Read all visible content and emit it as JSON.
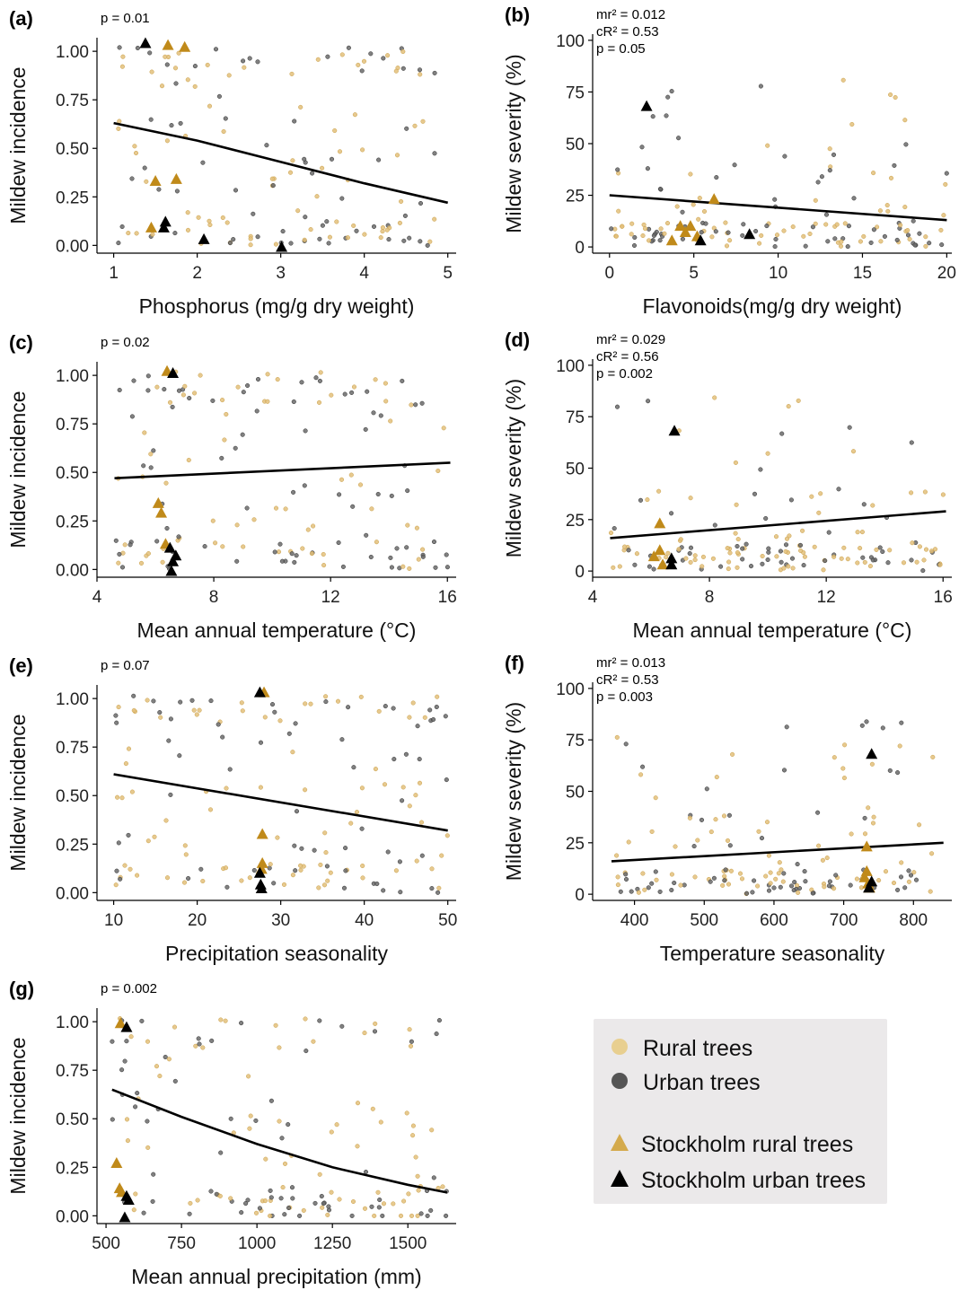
{
  "colors": {
    "rural": "#d4aa4c",
    "urban": "#555555",
    "stockholm_rural": "#c08a1a",
    "stockholm_urban": "#000000",
    "fit": "#000000",
    "legend_bg": "#ebe9ea"
  },
  "legend": {
    "items": [
      {
        "label": "Rural trees",
        "symbol": "circle",
        "color": "#e8cf90"
      },
      {
        "label": "Urban trees",
        "symbol": "circle",
        "color": "#555555"
      },
      {
        "label": "Stockholm rural trees",
        "symbol": "triangle",
        "color": "#d4aa4c"
      },
      {
        "label": "Stockholm urban trees",
        "symbol": "triangle",
        "color": "#000000"
      }
    ]
  },
  "chart_data": [
    {
      "panel": "(a)",
      "type": "scatter",
      "xlabel": "Phosphorus (mg/g dry weight)",
      "ylabel": "Mildew incidence",
      "stats": [
        "p = 0.01"
      ],
      "xlim": [
        0.8,
        5.1
      ],
      "ylim": [
        -0.04,
        1.07
      ],
      "xticks": [
        1,
        2,
        3,
        4,
        5
      ],
      "xtick_labels": [
        "1",
        "2",
        "3",
        "4",
        "5"
      ],
      "yticks": [
        0,
        0.25,
        0.5,
        0.75,
        1
      ],
      "ytick_labels": [
        "0.00",
        "0.25",
        "0.50",
        "0.75",
        "1.00"
      ],
      "fit": [
        [
          1.0,
          0.63
        ],
        [
          2.0,
          0.54
        ],
        [
          3.0,
          0.43
        ],
        [
          4.0,
          0.32
        ],
        [
          5.0,
          0.22
        ]
      ],
      "stockholm_rural": [
        [
          1.5,
          0.33
        ],
        [
          1.75,
          0.34
        ],
        [
          1.45,
          0.09
        ],
        [
          1.85,
          1.02
        ],
        [
          1.65,
          1.03
        ]
      ],
      "stockholm_urban": [
        [
          1.38,
          1.04
        ],
        [
          1.62,
          0.12
        ],
        [
          1.6,
          0.09
        ],
        [
          2.08,
          0.03
        ],
        [
          3.01,
          -0.01
        ]
      ]
    },
    {
      "panel": "(b)",
      "type": "scatter",
      "xlabel": "Flavonoids(mg/g dry weight)",
      "ylabel": "Mildew severity (%)",
      "stats": [
        "mr² = 0.012",
        "cR² = 0.53",
        "p = 0.05"
      ],
      "xlim": [
        -1,
        20.3
      ],
      "ylim": [
        -3,
        103
      ],
      "xticks": [
        0,
        5,
        10,
        15,
        20
      ],
      "xtick_labels": [
        "0",
        "5",
        "10",
        "15",
        "20"
      ],
      "yticks": [
        0,
        25,
        50,
        75,
        100
      ],
      "ytick_labels": [
        "0",
        "25",
        "50",
        "75",
        "100"
      ],
      "fit": [
        [
          0,
          25
        ],
        [
          20,
          13
        ]
      ],
      "stockholm_rural": [
        [
          4.2,
          10
        ],
        [
          4.8,
          10
        ],
        [
          4.5,
          7
        ],
        [
          3.7,
          3
        ],
        [
          5.2,
          5
        ],
        [
          6.2,
          23
        ]
      ],
      "stockholm_urban": [
        [
          2.2,
          68
        ],
        [
          5.4,
          3
        ],
        [
          8.3,
          6
        ]
      ]
    },
    {
      "panel": "(c)",
      "type": "scatter",
      "xlabel": "Mean annual temperature (°C)",
      "ylabel": "Mildew incidence",
      "stats": [
        "p = 0.02"
      ],
      "xlim": [
        4,
        16.3
      ],
      "ylim": [
        -0.04,
        1.07
      ],
      "xticks": [
        4,
        8,
        12,
        16
      ],
      "xtick_labels": [
        "4",
        "8",
        "12",
        "16"
      ],
      "yticks": [
        0,
        0.25,
        0.5,
        0.75,
        1
      ],
      "ytick_labels": [
        "0.00",
        "0.25",
        "0.50",
        "0.75",
        "1.00"
      ],
      "fit": [
        [
          4.6,
          0.47
        ],
        [
          16.1,
          0.55
        ]
      ],
      "stockholm_rural": [
        [
          6.1,
          0.34
        ],
        [
          6.2,
          0.29
        ],
        [
          6.35,
          0.13
        ],
        [
          6.4,
          1.02
        ]
      ],
      "stockholm_urban": [
        [
          6.6,
          1.01
        ],
        [
          6.5,
          0.11
        ],
        [
          6.7,
          0.07
        ],
        [
          6.6,
          0.04
        ],
        [
          6.55,
          -0.01
        ]
      ]
    },
    {
      "panel": "(d)",
      "type": "scatter",
      "xlabel": "Mean annual temperature (°C)",
      "ylabel": "Mildew severity (%)",
      "stats": [
        "mr² = 0.029",
        "cR² = 0.56",
        "p = 0.002"
      ],
      "xlim": [
        4,
        16.3
      ],
      "ylim": [
        -3,
        103
      ],
      "xticks": [
        4,
        8,
        12,
        16
      ],
      "xtick_labels": [
        "4",
        "8",
        "12",
        "16"
      ],
      "yticks": [
        0,
        25,
        50,
        75,
        100
      ],
      "ytick_labels": [
        "0",
        "25",
        "50",
        "75",
        "100"
      ],
      "fit": [
        [
          4.6,
          16
        ],
        [
          16.1,
          29
        ]
      ],
      "stockholm_rural": [
        [
          6.3,
          23
        ],
        [
          6.3,
          10
        ],
        [
          6.1,
          7
        ],
        [
          6.4,
          3
        ]
      ],
      "stockholm_urban": [
        [
          6.8,
          68
        ],
        [
          6.7,
          6
        ],
        [
          6.7,
          3
        ]
      ]
    },
    {
      "panel": "(e)",
      "type": "scatter",
      "xlabel": "Precipitation seasonality",
      "ylabel": "Mildew incidence",
      "stats": [
        "p = 0.07"
      ],
      "xlim": [
        8,
        51
      ],
      "ylim": [
        -0.04,
        1.07
      ],
      "xticks": [
        10,
        20,
        30,
        40,
        50
      ],
      "xtick_labels": [
        "10",
        "20",
        "30",
        "40",
        "50"
      ],
      "yticks": [
        0,
        0.25,
        0.5,
        0.75,
        1
      ],
      "ytick_labels": [
        "0.00",
        "0.25",
        "0.50",
        "0.75",
        "1.00"
      ],
      "fit": [
        [
          10,
          0.61
        ],
        [
          50,
          0.32
        ]
      ],
      "stockholm_rural": [
        [
          27.8,
          0.3
        ],
        [
          27.8,
          0.15
        ],
        [
          27.7,
          0.12
        ],
        [
          28.0,
          1.03
        ]
      ],
      "stockholm_urban": [
        [
          27.5,
          1.03
        ],
        [
          27.5,
          0.1
        ],
        [
          27.6,
          0.04
        ],
        [
          27.7,
          0.02
        ]
      ]
    },
    {
      "panel": "(f)",
      "type": "scatter",
      "xlabel": "Temperature seasonality",
      "ylabel": "Mildew severity (%)",
      "stats": [
        "mr² = 0.013",
        "cR² = 0.53",
        "p = 0.003"
      ],
      "xlim": [
        340,
        855
      ],
      "ylim": [
        -3,
        103
      ],
      "xticks": [
        400,
        500,
        600,
        700,
        800
      ],
      "xtick_labels": [
        "400",
        "500",
        "600",
        "700",
        "800"
      ],
      "yticks": [
        0,
        25,
        50,
        75,
        100
      ],
      "ytick_labels": [
        "0",
        "25",
        "50",
        "75",
        "100"
      ],
      "fit": [
        [
          367,
          16
        ],
        [
          843,
          25
        ]
      ],
      "stockholm_rural": [
        [
          733,
          23
        ],
        [
          733,
          11
        ],
        [
          730,
          8
        ],
        [
          735,
          5
        ],
        [
          737,
          3
        ]
      ],
      "stockholm_urban": [
        [
          740,
          68
        ],
        [
          740,
          6
        ],
        [
          736,
          3
        ]
      ]
    },
    {
      "panel": "(g)",
      "type": "scatter",
      "xlabel": "Mean annual precipitation (mm)",
      "ylabel": "Mildew incidence",
      "stats": [
        "p = 0.002"
      ],
      "xlim": [
        470,
        1660
      ],
      "ylim": [
        -0.04,
        1.07
      ],
      "xticks": [
        500,
        750,
        1000,
        1250,
        1500
      ],
      "xtick_labels": [
        "500",
        "750",
        "1000",
        "1250",
        "1500"
      ],
      "yticks": [
        0,
        0.25,
        0.5,
        0.75,
        1
      ],
      "ytick_labels": [
        "0.00",
        "0.25",
        "0.50",
        "0.75",
        "1.00"
      ],
      "fit": [
        [
          520,
          0.65
        ],
        [
          750,
          0.51
        ],
        [
          1000,
          0.37
        ],
        [
          1250,
          0.25
        ],
        [
          1500,
          0.16
        ],
        [
          1630,
          0.12
        ]
      ],
      "stockholm_rural": [
        [
          548,
          0.99
        ],
        [
          535,
          0.27
        ],
        [
          545,
          0.14
        ],
        [
          552,
          0.12
        ]
      ],
      "stockholm_urban": [
        [
          568,
          0.97
        ],
        [
          568,
          0.1
        ],
        [
          575,
          0.08
        ],
        [
          562,
          -0.01
        ]
      ]
    }
  ]
}
